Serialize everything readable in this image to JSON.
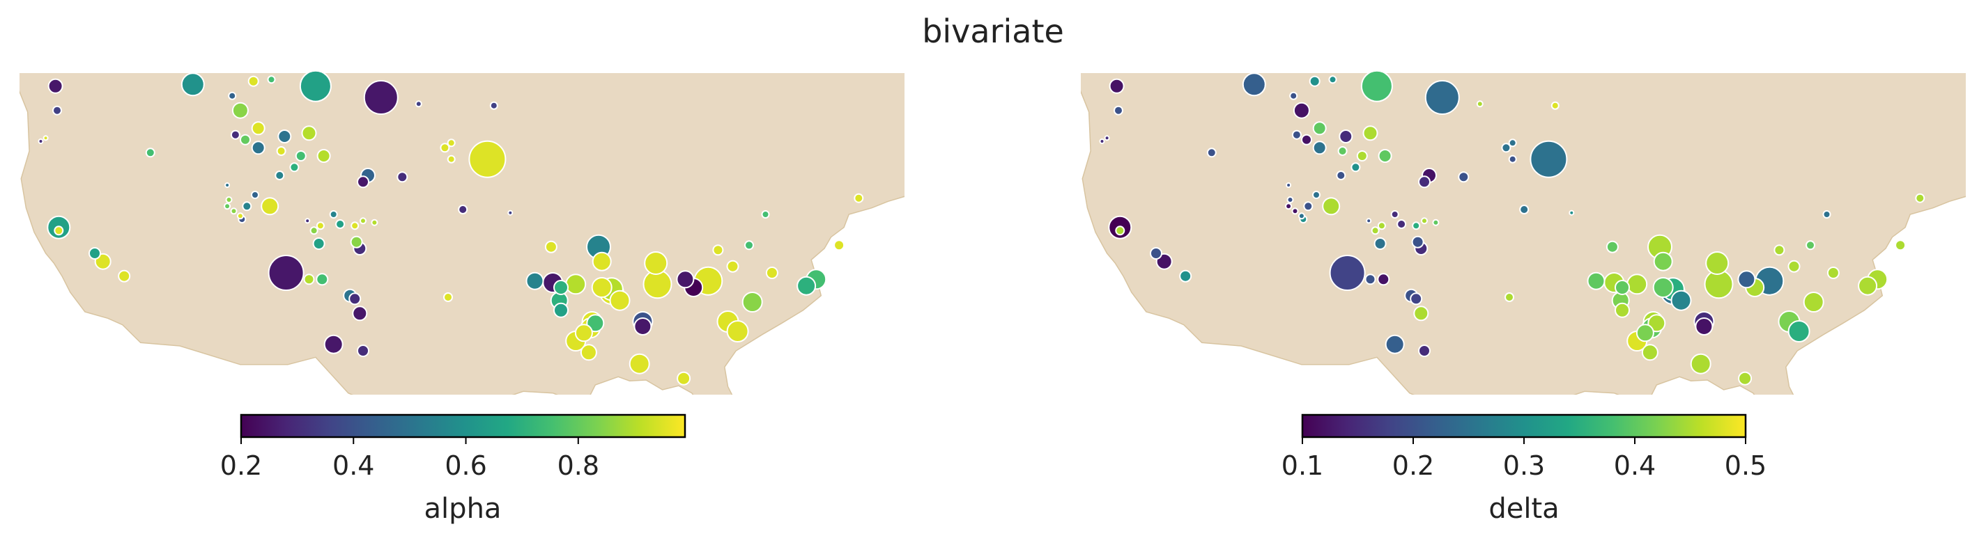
{
  "title": "bivariate",
  "land_color": "#e8d9c2",
  "panels": [
    {
      "variable": "alpha",
      "colorbar_label": "alpha",
      "colorbar_ticks": [
        "0.2",
        "0.4",
        "0.6",
        "0.8"
      ],
      "colorbar_tick_values": [
        0.2,
        0.4,
        0.6,
        0.8
      ],
      "vmin": 0.2,
      "vmax": 0.99
    },
    {
      "variable": "delta",
      "colorbar_label": "delta",
      "colorbar_ticks": [
        "0.1",
        "0.2",
        "0.3",
        "0.4",
        "0.5"
      ],
      "colorbar_tick_values": [
        0.1,
        0.2,
        0.3,
        0.4,
        0.5
      ],
      "vmin": 0.1,
      "vmax": 0.5
    }
  ],
  "chart_data": {
    "type": "scatter",
    "colormap": "viridis",
    "size_scale": "bubble area ~ value",
    "sites": [
      {
        "lon": -122.4,
        "lat": 48.5,
        "size": 10,
        "alpha": 0.25,
        "delta": 0.12
      },
      {
        "lon": -114.0,
        "lat": 48.6,
        "size": 16,
        "alpha": 0.6,
        "delta": 0.22
      },
      {
        "lon": -110.3,
        "lat": 48.8,
        "size": 7,
        "alpha": 0.95,
        "delta": 0.3
      },
      {
        "lon": -109.2,
        "lat": 48.9,
        "size": 5,
        "alpha": 0.75,
        "delta": 0.3
      },
      {
        "lon": -106.5,
        "lat": 48.5,
        "size": 22,
        "alpha": 0.65,
        "delta": 0.38
      },
      {
        "lon": -102.5,
        "lat": 47.8,
        "size": 24,
        "alpha": 0.25,
        "delta": 0.24
      },
      {
        "lon": -100.2,
        "lat": 47.4,
        "size": 4,
        "alpha": 0.35,
        "delta": 0.45
      },
      {
        "lon": -95.6,
        "lat": 47.3,
        "size": 5,
        "alpha": 0.35,
        "delta": 0.48
      },
      {
        "lon": -122.3,
        "lat": 47.0,
        "size": 6,
        "alpha": 0.35,
        "delta": 0.2
      },
      {
        "lon": -111.6,
        "lat": 47.9,
        "size": 5,
        "alpha": 0.45,
        "delta": 0.2
      },
      {
        "lon": -111.1,
        "lat": 47.0,
        "size": 11,
        "alpha": 0.85,
        "delta": 0.12
      },
      {
        "lon": -110.0,
        "lat": 45.9,
        "size": 9,
        "alpha": 0.95,
        "delta": 0.4
      },
      {
        "lon": -123.3,
        "lat": 45.1,
        "size": 3,
        "alpha": 0.3,
        "delta": 0.15
      },
      {
        "lon": -123.0,
        "lat": 45.3,
        "size": 3,
        "alpha": 0.95,
        "delta": 0.15
      },
      {
        "lon": -116.6,
        "lat": 44.4,
        "size": 6,
        "alpha": 0.75,
        "delta": 0.2
      },
      {
        "lon": -111.4,
        "lat": 45.5,
        "size": 6,
        "alpha": 0.3,
        "delta": 0.2
      },
      {
        "lon": -110.8,
        "lat": 45.2,
        "size": 7,
        "alpha": 0.8,
        "delta": 0.12
      },
      {
        "lon": -110.0,
        "lat": 44.7,
        "size": 9,
        "alpha": 0.5,
        "delta": 0.25
      },
      {
        "lon": -108.6,
        "lat": 44.5,
        "size": 6,
        "alpha": 0.95,
        "delta": 0.4
      },
      {
        "lon": -108.4,
        "lat": 45.4,
        "size": 9,
        "alpha": 0.5,
        "delta": 0.15
      },
      {
        "lon": -107.4,
        "lat": 44.2,
        "size": 7,
        "alpha": 0.75,
        "delta": 0.45
      },
      {
        "lon": -106.9,
        "lat": 45.6,
        "size": 10,
        "alpha": 0.9,
        "delta": 0.45
      },
      {
        "lon": -107.8,
        "lat": 43.5,
        "size": 6,
        "alpha": 0.7,
        "delta": 0.3
      },
      {
        "lon": -106.0,
        "lat": 44.2,
        "size": 9,
        "alpha": 0.9,
        "delta": 0.4
      },
      {
        "lon": -108.7,
        "lat": 43.0,
        "size": 6,
        "alpha": 0.55,
        "delta": 0.2
      },
      {
        "lon": -103.6,
        "lat": 42.6,
        "size": 8,
        "alpha": 0.25,
        "delta": 0.15
      },
      {
        "lon": -103.3,
        "lat": 43.0,
        "size": 10,
        "alpha": 0.45,
        "delta": 0.12
      },
      {
        "lon": -101.2,
        "lat": 42.9,
        "size": 7,
        "alpha": 0.3,
        "delta": 0.2
      },
      {
        "lon": -98.6,
        "lat": 44.7,
        "size": 6,
        "alpha": 0.95,
        "delta": 0.25
      },
      {
        "lon": -98.2,
        "lat": 45.0,
        "size": 5,
        "alpha": 0.95,
        "delta": 0.25
      },
      {
        "lon": -98.2,
        "lat": 44.0,
        "size": 5,
        "alpha": 0.95,
        "delta": 0.2
      },
      {
        "lon": -96.0,
        "lat": 44.0,
        "size": 26,
        "alpha": 0.95,
        "delta": 0.25
      },
      {
        "lon": -122.2,
        "lat": 39.8,
        "size": 16,
        "alpha": 0.65,
        "delta": 0.1
      },
      {
        "lon": -122.2,
        "lat": 39.6,
        "size": 6,
        "alpha": 0.95,
        "delta": 0.45
      },
      {
        "lon": -111.9,
        "lat": 42.4,
        "size": 3,
        "alpha": 0.5,
        "delta": 0.2
      },
      {
        "lon": -111.8,
        "lat": 41.5,
        "size": 4,
        "alpha": 0.85,
        "delta": 0.2
      },
      {
        "lon": -111.9,
        "lat": 41.1,
        "size": 4,
        "alpha": 0.8,
        "delta": 0.12
      },
      {
        "lon": -111.5,
        "lat": 40.8,
        "size": 4,
        "alpha": 0.85,
        "delta": 0.12
      },
      {
        "lon": -111.0,
        "lat": 40.3,
        "size": 5,
        "alpha": 0.4,
        "delta": 0.3
      },
      {
        "lon": -110.7,
        "lat": 41.1,
        "size": 6,
        "alpha": 0.55,
        "delta": 0.2
      },
      {
        "lon": -111.1,
        "lat": 40.5,
        "size": 4,
        "alpha": 0.95,
        "delta": 0.25
      },
      {
        "lon": -110.2,
        "lat": 41.8,
        "size": 5,
        "alpha": 0.45,
        "delta": 0.25
      },
      {
        "lon": -109.3,
        "lat": 41.1,
        "size": 12,
        "alpha": 0.95,
        "delta": 0.45
      },
      {
        "lon": -107.0,
        "lat": 40.2,
        "size": 3,
        "alpha": 0.3,
        "delta": 0.2
      },
      {
        "lon": -106.6,
        "lat": 39.6,
        "size": 5,
        "alpha": 0.85,
        "delta": 0.45
      },
      {
        "lon": -106.2,
        "lat": 39.9,
        "size": 5,
        "alpha": 0.95,
        "delta": 0.45
      },
      {
        "lon": -105.4,
        "lat": 40.6,
        "size": 5,
        "alpha": 0.55,
        "delta": 0.15
      },
      {
        "lon": -105.0,
        "lat": 40.0,
        "size": 6,
        "alpha": 0.65,
        "delta": 0.15
      },
      {
        "lon": -104.1,
        "lat": 39.9,
        "size": 5,
        "alpha": 0.95,
        "delta": 0.35
      },
      {
        "lon": -103.6,
        "lat": 40.2,
        "size": 4,
        "alpha": 0.9,
        "delta": 0.45
      },
      {
        "lon": -102.9,
        "lat": 40.1,
        "size": 4,
        "alpha": 0.9,
        "delta": 0.4
      },
      {
        "lon": -106.3,
        "lat": 38.8,
        "size": 8,
        "alpha": 0.65,
        "delta": 0.25
      },
      {
        "lon": -104.0,
        "lat": 38.9,
        "size": 8,
        "alpha": 0.85,
        "delta": 0.2
      },
      {
        "lon": -103.8,
        "lat": 38.5,
        "size": 9,
        "alpha": 0.3,
        "delta": 0.15
      },
      {
        "lon": -97.5,
        "lat": 40.9,
        "size": 6,
        "alpha": 0.3,
        "delta": 0.25
      },
      {
        "lon": -94.6,
        "lat": 40.7,
        "size": 3,
        "alpha": 0.35,
        "delta": 0.3
      },
      {
        "lon": -120.0,
        "lat": 38.2,
        "size": 8,
        "alpha": 0.65,
        "delta": 0.2
      },
      {
        "lon": -119.5,
        "lat": 37.7,
        "size": 11,
        "alpha": 0.95,
        "delta": 0.12
      },
      {
        "lon": -118.2,
        "lat": 36.8,
        "size": 8,
        "alpha": 0.95,
        "delta": 0.3
      },
      {
        "lon": -108.3,
        "lat": 37.0,
        "size": 25,
        "alpha": 0.25,
        "delta": 0.18
      },
      {
        "lon": -106.1,
        "lat": 36.6,
        "size": 8,
        "alpha": 0.75,
        "delta": 0.12
      },
      {
        "lon": -106.9,
        "lat": 36.6,
        "size": 7,
        "alpha": 0.9,
        "delta": 0.2
      },
      {
        "lon": -104.4,
        "lat": 35.6,
        "size": 9,
        "alpha": 0.5,
        "delta": 0.2
      },
      {
        "lon": -104.1,
        "lat": 35.4,
        "size": 8,
        "alpha": 0.3,
        "delta": 0.18
      },
      {
        "lon": -98.4,
        "lat": 35.5,
        "size": 6,
        "alpha": 0.95,
        "delta": 0.45
      },
      {
        "lon": -105.4,
        "lat": 32.6,
        "size": 13,
        "alpha": 0.25,
        "delta": 0.22
      },
      {
        "lon": -103.6,
        "lat": 32.2,
        "size": 8,
        "alpha": 0.3,
        "delta": 0.15
      },
      {
        "lon": -92.1,
        "lat": 38.6,
        "size": 8,
        "alpha": 0.95,
        "delta": 0.4
      },
      {
        "lon": -89.2,
        "lat": 38.6,
        "size": 17,
        "alpha": 0.55,
        "delta": 0.45
      },
      {
        "lon": -89.0,
        "lat": 37.7,
        "size": 13,
        "alpha": 0.95,
        "delta": 0.42
      },
      {
        "lon": -93.1,
        "lat": 36.5,
        "size": 12,
        "alpha": 0.55,
        "delta": 0.4
      },
      {
        "lon": -92.0,
        "lat": 36.4,
        "size": 14,
        "alpha": 0.25,
        "delta": 0.45
      },
      {
        "lon": -91.5,
        "lat": 36.1,
        "size": 10,
        "alpha": 0.7,
        "delta": 0.4
      },
      {
        "lon": -90.6,
        "lat": 36.3,
        "size": 14,
        "alpha": 0.9,
        "delta": 0.45
      },
      {
        "lon": -91.6,
        "lat": 35.3,
        "size": 12,
        "alpha": 0.7,
        "delta": 0.42
      },
      {
        "lon": -91.5,
        "lat": 34.7,
        "size": 10,
        "alpha": 0.65,
        "delta": 0.45
      },
      {
        "lon": -89.0,
        "lat": 36.1,
        "size": 14,
        "alpha": 0.95,
        "delta": 0.4
      },
      {
        "lon": -88.4,
        "lat": 36.0,
        "size": 16,
        "alpha": 0.9,
        "delta": 0.35
      },
      {
        "lon": -88.4,
        "lat": 35.8,
        "size": 17,
        "alpha": 0.95,
        "delta": 0.25
      },
      {
        "lon": -87.9,
        "lat": 35.3,
        "size": 14,
        "alpha": 0.95,
        "delta": 0.28
      },
      {
        "lon": -89.6,
        "lat": 34.0,
        "size": 14,
        "alpha": 0.95,
        "delta": 0.45
      },
      {
        "lon": -89.7,
        "lat": 33.6,
        "size": 14,
        "alpha": 0.95,
        "delta": 0.4
      },
      {
        "lon": -89.4,
        "lat": 33.9,
        "size": 12,
        "alpha": 0.75,
        "delta": 0.45
      },
      {
        "lon": -90.1,
        "lat": 33.3,
        "size": 12,
        "alpha": 0.95,
        "delta": 0.42
      },
      {
        "lon": -90.6,
        "lat": 32.8,
        "size": 14,
        "alpha": 0.95,
        "delta": 0.48
      },
      {
        "lon": -89.8,
        "lat": 32.1,
        "size": 11,
        "alpha": 0.95,
        "delta": 0.45
      },
      {
        "lon": -85.7,
        "lat": 37.6,
        "size": 16,
        "alpha": 0.95,
        "delta": 0.45
      },
      {
        "lon": -85.6,
        "lat": 36.3,
        "size": 20,
        "alpha": 0.95,
        "delta": 0.45
      },
      {
        "lon": -83.9,
        "lat": 36.6,
        "size": 12,
        "alpha": 0.25,
        "delta": 0.22
      },
      {
        "lon": -83.4,
        "lat": 36.1,
        "size": 13,
        "alpha": 0.2,
        "delta": 0.45
      },
      {
        "lon": -82.5,
        "lat": 36.5,
        "size": 20,
        "alpha": 0.95,
        "delta": 0.25
      },
      {
        "lon": -81.0,
        "lat": 37.4,
        "size": 8,
        "alpha": 0.95,
        "delta": 0.45
      },
      {
        "lon": -86.5,
        "lat": 34.0,
        "size": 14,
        "alpha": 0.4,
        "delta": 0.15
      },
      {
        "lon": -86.5,
        "lat": 33.7,
        "size": 12,
        "alpha": 0.25,
        "delta": 0.12
      },
      {
        "lon": -86.7,
        "lat": 31.4,
        "size": 14,
        "alpha": 0.95,
        "delta": 0.45
      },
      {
        "lon": -81.9,
        "lat": 38.4,
        "size": 7,
        "alpha": 0.95,
        "delta": 0.45
      },
      {
        "lon": -80.0,
        "lat": 38.7,
        "size": 6,
        "alpha": 0.75,
        "delta": 0.4
      },
      {
        "lon": -79.0,
        "lat": 40.6,
        "size": 5,
        "alpha": 0.75,
        "delta": 0.25
      },
      {
        "lon": -78.6,
        "lat": 37.0,
        "size": 8,
        "alpha": 0.95,
        "delta": 0.45
      },
      {
        "lon": -79.8,
        "lat": 35.2,
        "size": 14,
        "alpha": 0.85,
        "delta": 0.45
      },
      {
        "lon": -76.5,
        "lat": 36.2,
        "size": 13,
        "alpha": 0.7,
        "delta": 0.45
      },
      {
        "lon": -75.9,
        "lat": 36.6,
        "size": 14,
        "alpha": 0.75,
        "delta": 0.45
      },
      {
        "lon": -74.5,
        "lat": 38.7,
        "size": 7,
        "alpha": 0.95,
        "delta": 0.45
      },
      {
        "lon": -73.3,
        "lat": 41.6,
        "size": 6,
        "alpha": 0.95,
        "delta": 0.45
      },
      {
        "lon": -81.3,
        "lat": 34.0,
        "size": 15,
        "alpha": 0.95,
        "delta": 0.42
      },
      {
        "lon": -80.7,
        "lat": 33.4,
        "size": 15,
        "alpha": 0.95,
        "delta": 0.35
      },
      {
        "lon": -84.0,
        "lat": 30.5,
        "size": 9,
        "alpha": 0.95,
        "delta": 0.45
      },
      {
        "lon": -103.8,
        "lat": 34.5,
        "size": 10,
        "alpha": 0.25,
        "delta": 0.45
      }
    ]
  }
}
